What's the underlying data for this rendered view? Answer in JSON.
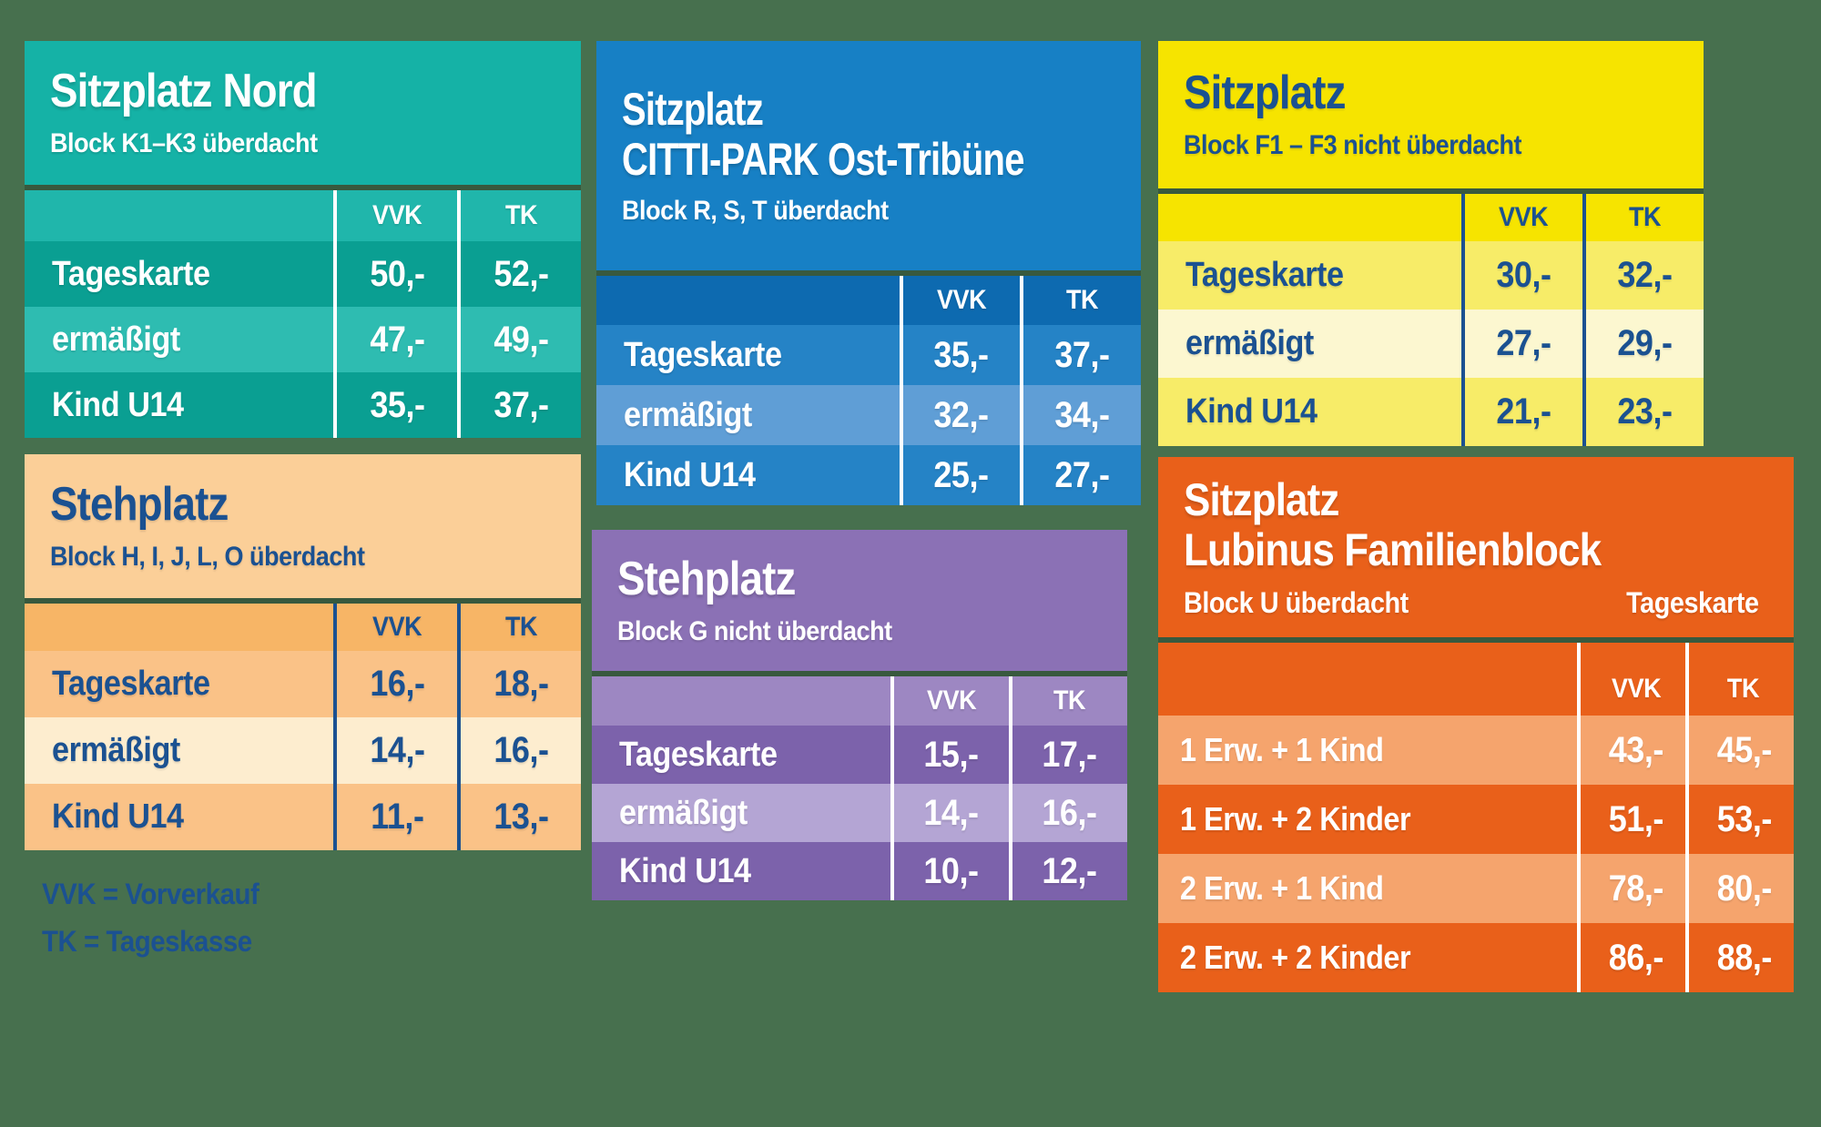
{
  "page": {
    "colors": {
      "bg": "#47704e"
    }
  },
  "legend": {
    "vvk": "VVK = Vorverkauf",
    "tk": "TK = Tageskasse",
    "colors": {
      "text": "#1b5191"
    }
  },
  "tables": {
    "nord": {
      "title": "Sitzplatz Nord",
      "subtitle": "Block K1–K3 überdacht",
      "columns": [
        "VVK",
        "TK"
      ],
      "rows": [
        {
          "label": "Tageskarte",
          "vvk": "50,-",
          "tk": "52,-"
        },
        {
          "label": "ermäßigt",
          "vvk": "47,-",
          "tk": "49,-"
        },
        {
          "label": "Kind U14",
          "vvk": "35,-",
          "tk": "37,-"
        }
      ],
      "colors": {
        "base": "#15b2a6",
        "header": "#20b6ab",
        "row-dark": "#0a9f92",
        "row-light": "#2ebcb1",
        "sep": "#ffffff",
        "text": "#ffffff"
      }
    },
    "citti": {
      "title_line1": "Sitzplatz",
      "title_line2": "CITTI-PARK Ost-Tribüne",
      "subtitle": "Block R, S, T überdacht",
      "columns": [
        "VVK",
        "TK"
      ],
      "rows": [
        {
          "label": "Tageskarte",
          "vvk": "35,-",
          "tk": "37,-"
        },
        {
          "label": "ermäßigt",
          "vvk": "32,-",
          "tk": "34,-"
        },
        {
          "label": "Kind U14",
          "vvk": "25,-",
          "tk": "27,-"
        }
      ],
      "colors": {
        "base": "#1780c5",
        "header": "#0d6ab0",
        "row-dark": "#2583c6",
        "row-light": "#5f9ed6",
        "sep": "#ffffff",
        "text": "#ffffff"
      }
    },
    "f13": {
      "title": "Sitzplatz",
      "subtitle": "Block F1 – F3 nicht überdacht",
      "columns": [
        "VVK",
        "TK"
      ],
      "rows": [
        {
          "label": "Tageskarte",
          "vvk": "30,-",
          "tk": "32,-"
        },
        {
          "label": "ermäßigt",
          "vvk": "27,-",
          "tk": "29,-"
        },
        {
          "label": "Kind U14",
          "vvk": "21,-",
          "tk": "23,-"
        }
      ],
      "colors": {
        "base": "#f6e400",
        "header": "#f6e400",
        "row-dark": "#f7ec68",
        "row-light": "#fcf7d0",
        "sep": "#1b5191",
        "text": "#1b5191"
      }
    },
    "hijlo": {
      "title": "Stehplatz",
      "subtitle": "Block H, I, J, L, O überdacht",
      "columns": [
        "VVK",
        "TK"
      ],
      "rows": [
        {
          "label": "Tageskarte",
          "vvk": "16,-",
          "tk": "18,-"
        },
        {
          "label": "ermäßigt",
          "vvk": "14,-",
          "tk": "16,-"
        },
        {
          "label": "Kind U14",
          "vvk": "11,-",
          "tk": "13,-"
        }
      ],
      "colors": {
        "base": "#fbcf98",
        "header": "#f7b566",
        "row-dark": "#fac287",
        "row-light": "#fdedcf",
        "sep": "#1b5191",
        "text": "#1b5191"
      }
    },
    "g": {
      "title": "Stehplatz",
      "subtitle": "Block G nicht überdacht",
      "columns": [
        "VVK",
        "TK"
      ],
      "rows": [
        {
          "label": "Tageskarte",
          "vvk": "15,-",
          "tk": "17,-"
        },
        {
          "label": "ermäßigt",
          "vvk": "14,-",
          "tk": "16,-"
        },
        {
          "label": "Kind U14",
          "vvk": "10,-",
          "tk": "12,-"
        }
      ],
      "colors": {
        "base": "#8b71b5",
        "header": "#9d87c2",
        "row-dark": "#7c62ab",
        "row-light": "#b4a5d4",
        "sep": "#ffffff",
        "text": "#ffffff"
      }
    },
    "lubinus": {
      "title_line1": "Sitzplatz",
      "title_line2": "Lubinus Familienblock",
      "subtitle_left": "Block U überdacht",
      "subtitle_right": "Tageskarte",
      "columns": [
        "VVK",
        "TK"
      ],
      "rows": [
        {
          "label": "1 Erw. + 1 Kind",
          "vvk": "43,-",
          "tk": "45,-"
        },
        {
          "label": "1 Erw. + 2 Kinder",
          "vvk": "51,-",
          "tk": "53,-"
        },
        {
          "label": "2 Erw. + 1 Kind",
          "vvk": "78,-",
          "tk": "80,-"
        },
        {
          "label": "2 Erw. + 2 Kinder",
          "vvk": "86,-",
          "tk": "88,-"
        }
      ],
      "colors": {
        "base": "#e9601a",
        "header": "#e9601a",
        "row-dark": "#e9601a",
        "row-light": "#f5a46d",
        "sep": "#ffffff",
        "text": "#ffffff"
      }
    }
  }
}
